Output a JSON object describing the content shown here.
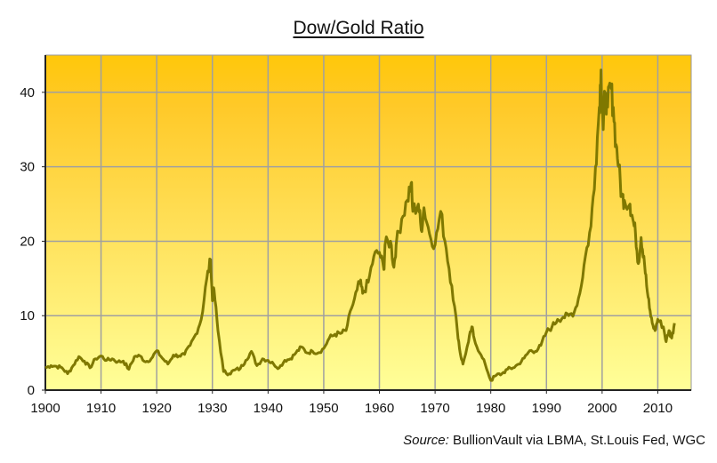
{
  "chart_data": {
    "type": "line",
    "title": "Dow/Gold Ratio",
    "xlabel": "",
    "ylabel": "",
    "xlim": [
      1900,
      2016
    ],
    "ylim": [
      0,
      45
    ],
    "x_ticks": [
      "1900",
      "1910",
      "1920",
      "1930",
      "1940",
      "1950",
      "1960",
      "1970",
      "1980",
      "1990",
      "2000",
      "2010"
    ],
    "y_ticks": [
      "0",
      "10",
      "20",
      "30",
      "40"
    ],
    "grid": true,
    "legend": "none",
    "background": {
      "top": "#ffc80a",
      "bottom": "#ffff99"
    },
    "line_color": "#7f7800",
    "source_label": "Source:",
    "source_text": "BullionVault via LBMA, St.Louis Fed, WGC",
    "series": [
      {
        "x": [
          1900,
          1901,
          1902,
          1903,
          1904,
          1905,
          1906,
          1907,
          1908,
          1909,
          1910,
          1911,
          1912,
          1913,
          1914,
          1915,
          1916,
          1917,
          1918,
          1919,
          1920,
          1921,
          1922,
          1923,
          1924,
          1925,
          1926,
          1927,
          1928,
          1929,
          1929.7,
          1930,
          1930.3,
          1931,
          1932,
          1933,
          1934,
          1935,
          1936,
          1937,
          1938,
          1939,
          1940,
          1941,
          1942,
          1943,
          1944,
          1945,
          1946,
          1947,
          1948,
          1949,
          1950,
          1951,
          1952,
          1953,
          1954,
          1955,
          1956,
          1956.5,
          1957,
          1958,
          1959,
          1960,
          1960.8,
          1961,
          1962,
          1962.6,
          1963,
          1964,
          1965,
          1965.7,
          1966,
          1967,
          1967.5,
          1968,
          1969,
          1970,
          1971,
          1972,
          1973,
          1974,
          1974.5,
          1975,
          1976,
          1976.6,
          1977,
          1978,
          1979,
          1980,
          1981,
          1982,
          1983,
          1984,
          1985,
          1986,
          1987,
          1988,
          1989,
          1990,
          1991,
          1992,
          1993,
          1994,
          1995,
          1996,
          1997,
          1998,
          1998.8,
          1999.5,
          1999.8,
          2000.2,
          2000.5,
          2001,
          2001.5,
          2002,
          2002.5,
          2003,
          2003.5,
          2004,
          2005,
          2005.5,
          2006,
          2006.5,
          2007,
          2007.5,
          2008,
          2008.5,
          2009,
          2009.5,
          2010,
          2011,
          2011.5,
          2012,
          2012.5,
          2013
        ],
        "values": [
          3,
          3.3,
          3.2,
          3,
          2.2,
          3.3,
          4.5,
          3.9,
          3,
          4.2,
          4.6,
          4,
          4.2,
          3.8,
          3.9,
          2.8,
          4.5,
          4.6,
          3.8,
          4.2,
          5.3,
          4.3,
          3.5,
          4.7,
          4.6,
          4.8,
          6,
          7.5,
          9.5,
          15,
          17.5,
          12,
          13.5,
          8,
          2.5,
          2.2,
          2.7,
          2.9,
          4,
          5.2,
          3.3,
          4.2,
          4,
          3.5,
          3,
          4,
          4.2,
          5,
          5.8,
          5,
          5.2,
          5,
          5.6,
          7,
          7.5,
          7.6,
          8,
          11,
          13.5,
          14.5,
          13,
          14.5,
          18,
          18.5,
          16.2,
          19.5,
          20,
          16.5,
          19.5,
          23,
          25.5,
          27.8,
          24,
          25,
          21.5,
          24.5,
          21,
          19.5,
          24,
          19,
          14,
          8,
          5,
          3.5,
          6.5,
          8.5,
          7,
          5,
          3.5,
          1.3,
          2,
          2.2,
          2.8,
          3,
          3.5,
          4.3,
          5.3,
          5.2,
          6,
          7.8,
          8.5,
          9.5,
          9.8,
          10,
          10.5,
          13,
          18,
          22,
          30,
          38,
          43,
          35,
          40,
          38,
          41,
          38,
          33,
          30,
          26,
          25.5,
          25,
          23,
          21,
          17,
          20.5,
          18,
          14,
          11,
          9,
          8,
          9.5,
          8.5,
          6.5,
          8,
          7,
          9
        ]
      }
    ]
  }
}
